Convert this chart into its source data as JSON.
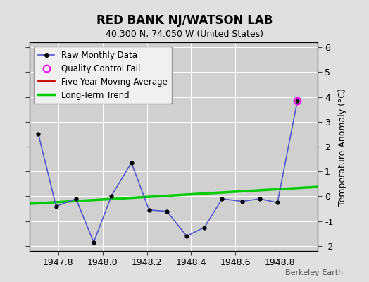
{
  "title": "RED BANK NJ/WATSON LAB",
  "subtitle": "40.300 N, 74.050 W (United States)",
  "watermark": "Berkeley Earth",
  "ylabel": "Temperature Anomaly (°C)",
  "ylim": [
    -2.2,
    6.2
  ],
  "xlim": [
    1947.67,
    1948.97
  ],
  "xticks": [
    1947.8,
    1948.0,
    1948.2,
    1948.4,
    1948.6,
    1948.8
  ],
  "yticks": [
    -2,
    -1,
    0,
    1,
    2,
    3,
    4,
    5,
    6
  ],
  "bg_color": "#e0e0e0",
  "plot_bg_color": "#d0d0d0",
  "raw_x": [
    1947.71,
    1947.79,
    1947.88,
    1947.96,
    1948.04,
    1948.13,
    1948.21,
    1948.29,
    1948.38,
    1948.46,
    1948.54,
    1948.63,
    1948.71,
    1948.79,
    1948.88
  ],
  "raw_y": [
    2.5,
    -0.4,
    -0.1,
    -1.85,
    0.02,
    1.35,
    -0.55,
    -0.6,
    -1.6,
    -1.25,
    -0.1,
    -0.2,
    -0.1,
    -0.25,
    3.85
  ],
  "qc_fail_x": [
    1948.88
  ],
  "qc_fail_y": [
    3.85
  ],
  "trend_x": [
    1947.67,
    1948.97
  ],
  "trend_y": [
    -0.3,
    0.38
  ],
  "raw_color": "#5555cc",
  "raw_marker_color": "#000000",
  "qc_color": "#ff00ff",
  "trend_color": "#00cc00",
  "moving_avg_color": "#cc0000",
  "grid_color": "#ffffff",
  "legend_bg": "#f0f0f0"
}
